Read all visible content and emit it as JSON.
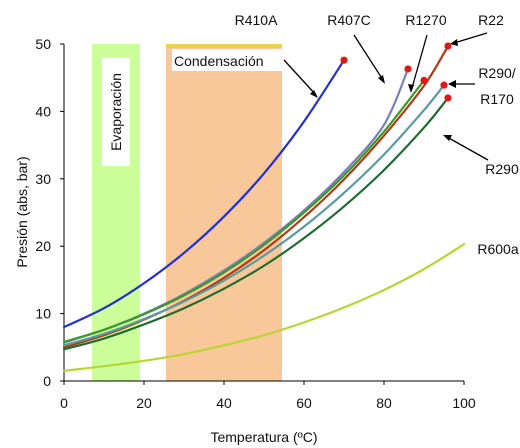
{
  "chart_data": {
    "type": "line",
    "title": "",
    "xlabel": "Temperatura (ºC)",
    "ylabel": "Presión (abs, bar)",
    "xlim": [
      0,
      100
    ],
    "ylim": [
      0,
      50
    ],
    "xticks": [
      0,
      20,
      40,
      60,
      80,
      100
    ],
    "yticks": [
      0,
      10,
      20,
      30,
      40,
      50
    ],
    "grid": false,
    "bands": [
      {
        "name": "Evaporación",
        "x_range": [
          7,
          19
        ],
        "color": "#ccff99",
        "label_orientation": "vertical"
      },
      {
        "name": "Condensación",
        "x_range": [
          25.5,
          54.5
        ],
        "color": "#f9c89a",
        "label_orientation": "horizontal"
      }
    ],
    "series": [
      {
        "name": "R410A",
        "color": "#1f2fd0",
        "end_marker": true,
        "x": [
          0,
          10,
          20,
          30,
          40,
          50,
          60,
          70
        ],
        "y": [
          8.0,
          10.8,
          14.5,
          19.0,
          24.4,
          30.8,
          38.5,
          47.6
        ]
      },
      {
        "name": "R407C",
        "color": "#7a7fb8",
        "end_marker": true,
        "x": [
          0,
          10,
          20,
          30,
          40,
          50,
          60,
          70,
          80,
          86
        ],
        "y": [
          5.7,
          7.6,
          10.0,
          12.9,
          16.4,
          20.5,
          25.3,
          31.0,
          38.0,
          46.3
        ]
      },
      {
        "name": "R22",
        "color": "#b03a12",
        "end_marker": true,
        "x": [
          0,
          10,
          20,
          30,
          40,
          50,
          60,
          70,
          80,
          90,
          96
        ],
        "y": [
          5.0,
          6.8,
          9.1,
          11.9,
          15.3,
          19.4,
          24.3,
          29.9,
          36.4,
          43.8,
          49.7
        ]
      },
      {
        "name": "R1270",
        "color": "#3a9a2a",
        "end_marker": true,
        "x": [
          0,
          10,
          20,
          30,
          40,
          50,
          60,
          70,
          80,
          90
        ],
        "y": [
          5.8,
          7.6,
          9.9,
          12.7,
          16.1,
          20.2,
          25.0,
          30.5,
          37.0,
          44.6
        ]
      },
      {
        "name": "R290/R170",
        "color": "#5a9aa0",
        "end_marker": true,
        "x": [
          0,
          10,
          20,
          30,
          40,
          50,
          60,
          70,
          80,
          90,
          95
        ],
        "y": [
          5.3,
          7.0,
          9.2,
          11.8,
          14.9,
          18.6,
          22.9,
          27.9,
          33.6,
          40.2,
          43.9
        ]
      },
      {
        "name": "R290",
        "color": "#1e6b30",
        "end_marker": true,
        "x": [
          0,
          10,
          20,
          30,
          40,
          50,
          60,
          70,
          80,
          90,
          96
        ],
        "y": [
          4.7,
          6.3,
          8.4,
          10.8,
          13.7,
          17.1,
          21.2,
          25.9,
          31.3,
          37.6,
          42.0
        ]
      },
      {
        "name": "R600a",
        "color": "#bbd432",
        "end_marker": false,
        "x": [
          0,
          10,
          20,
          30,
          40,
          50,
          60,
          70,
          80,
          90,
          100
        ],
        "y": [
          1.5,
          2.2,
          3.0,
          4.0,
          5.3,
          6.8,
          8.7,
          10.9,
          13.5,
          16.6,
          20.3
        ]
      }
    ],
    "series_labels": [
      "R410A",
      "R407C",
      "R1270",
      "R22",
      "R290/",
      "R170",
      "R290",
      "R600a"
    ]
  }
}
